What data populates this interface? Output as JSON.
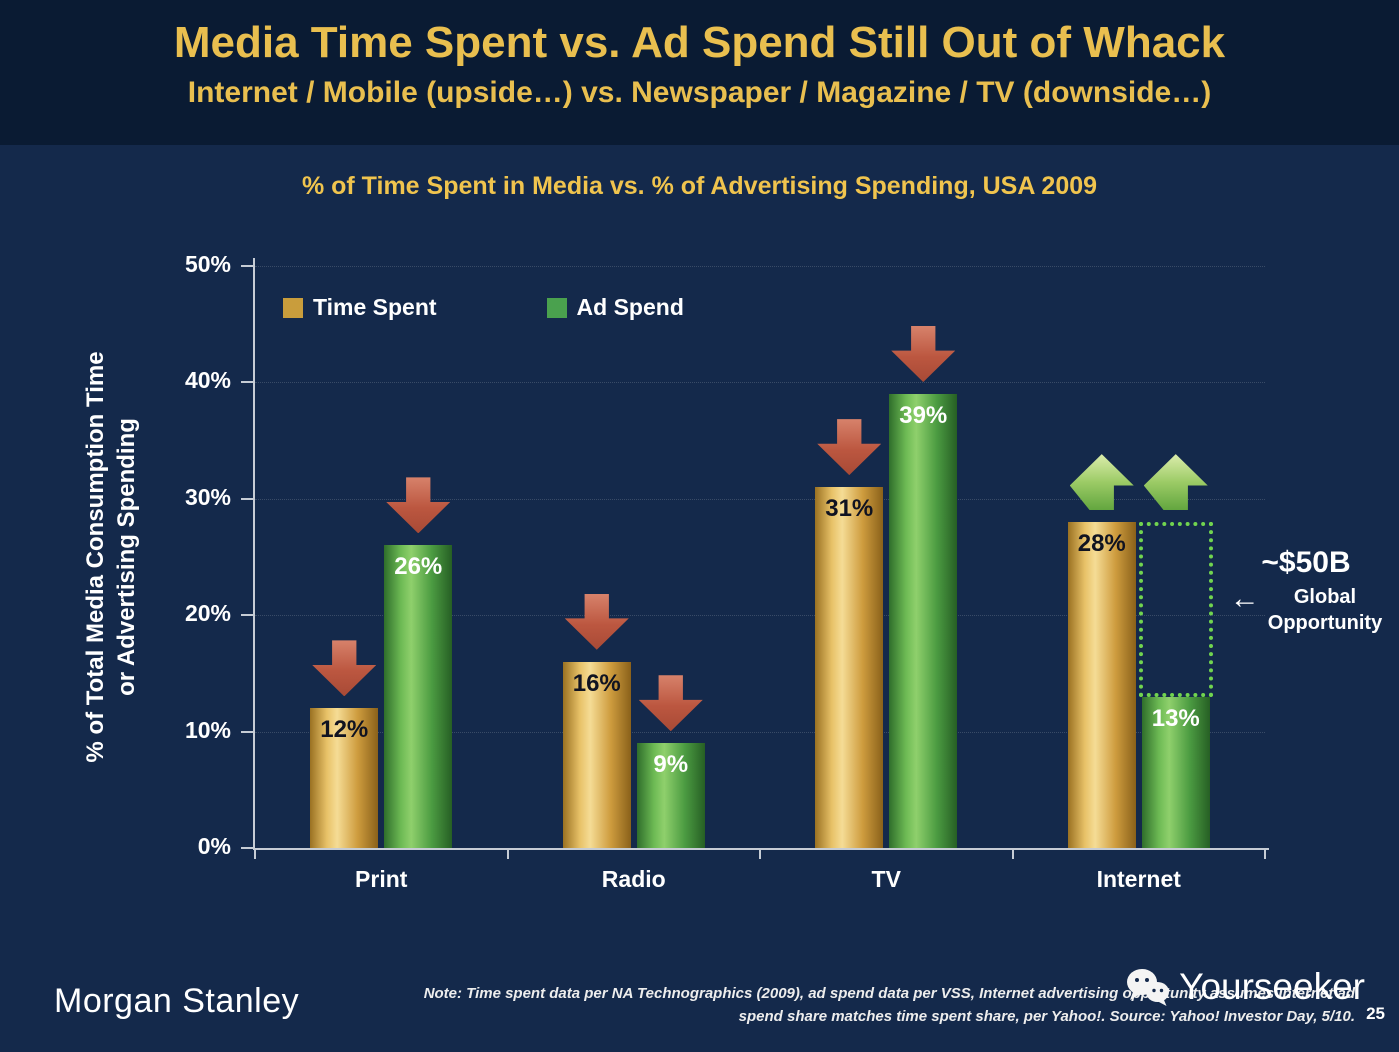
{
  "slide": {
    "title": "Media Time Spent vs. Ad Spend Still Out of Whack",
    "subtitle": "Internet / Mobile (upside…) vs. Newspaper / Magazine / TV (downside…)",
    "brand": "Morgan Stanley",
    "watermark": "Yourseeker",
    "page_number": "25",
    "note_line1": "Note: Time spent data per NA Technographics (2009), ad spend data per VSS, Internet advertising opportunity assumes Internet ad",
    "note_line2": "spend share matches time spent share, per Yahoo!. Source: Yahoo! Investor Day, 5/10."
  },
  "colors": {
    "header_bg": "#0A1B33",
    "body_bg": "#14294B",
    "gold_text": "#E9BF4F",
    "time_spent_bar": "#D9A93E",
    "ad_spend_bar": "#4FA04A",
    "down_arrow": "#C05A42",
    "up_arrow": "#9CCB66",
    "opportunity_border": "#71D44F"
  },
  "chart_data": {
    "type": "bar",
    "title": "% of Time Spent in Media vs. % of Advertising Spending, USA 2009",
    "ylabel": "% of Total Media Consumption Time or Advertising Spending",
    "ylabel_line1": "% of Total Media Consumption Time",
    "ylabel_line2": "or Advertising Spending",
    "categories": [
      "Print",
      "Radio",
      "TV",
      "Internet"
    ],
    "series": [
      {
        "name": "Time Spent",
        "color": "#C99D3C",
        "values": [
          12,
          16,
          31,
          28
        ],
        "labels": [
          "12%",
          "16%",
          "31%",
          "28%"
        ]
      },
      {
        "name": "Ad Spend",
        "color": "#4AA14E",
        "values": [
          26,
          9,
          39,
          13
        ],
        "labels": [
          "26%",
          "9%",
          "39%",
          "13%"
        ]
      }
    ],
    "ylim": [
      0,
      50
    ],
    "yticks": [
      "0%",
      "10%",
      "20%",
      "30%",
      "40%",
      "50%"
    ],
    "grid": true,
    "legend_position": "top-left",
    "arrows": [
      [
        "down",
        "down"
      ],
      [
        "down",
        "down"
      ],
      [
        "down",
        "down"
      ],
      [
        "up",
        "up"
      ]
    ],
    "opportunity_box": {
      "category_index": 3,
      "series_index": 1,
      "from_pct": 13,
      "to_pct": 28
    },
    "annotation": {
      "value": "~$50B",
      "arrow": "←",
      "label1": "Global",
      "label2": "Opportunity"
    }
  }
}
